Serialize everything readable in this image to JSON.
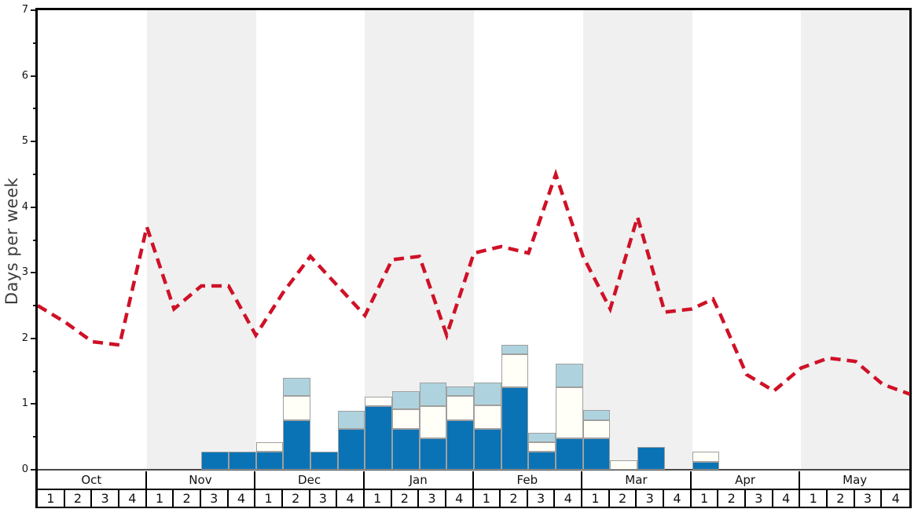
{
  "chart_data": {
    "type": "stacked-bar+line",
    "title": "",
    "ylabel": "Days per week",
    "ylim": [
      0,
      7
    ],
    "ytick_major": [
      0,
      1,
      2,
      3,
      4,
      5,
      6,
      7
    ],
    "ytick_minor_interval": 0.5,
    "grid": "off",
    "legend": "none",
    "x_months": [
      "Oct",
      "Nov",
      "Dec",
      "Jan",
      "Feb",
      "Mar",
      "Apr",
      "May"
    ],
    "x_week_labels": [
      "1",
      "2",
      "3",
      "4"
    ],
    "shaded_months": [
      "Nov",
      "Jan",
      "Mar",
      "May"
    ],
    "bars": {
      "stack_order_bottom_to_top": [
        "dark_blue",
        "white",
        "light_blue"
      ],
      "units": "days per week",
      "weekly_values": [
        {
          "month": "Oct",
          "week": 1,
          "values": [
            0,
            0,
            0
          ]
        },
        {
          "month": "Oct",
          "week": 2,
          "values": [
            0,
            0,
            0
          ]
        },
        {
          "month": "Oct",
          "week": 3,
          "values": [
            0,
            0,
            0
          ]
        },
        {
          "month": "Oct",
          "week": 4,
          "values": [
            0,
            0,
            0
          ]
        },
        {
          "month": "Nov",
          "week": 1,
          "values": [
            0,
            0,
            0
          ]
        },
        {
          "month": "Nov",
          "week": 2,
          "values": [
            0,
            0,
            0
          ]
        },
        {
          "month": "Nov",
          "week": 3,
          "values": [
            0.28,
            0,
            0
          ]
        },
        {
          "month": "Nov",
          "week": 4,
          "values": [
            0.28,
            0,
            0
          ]
        },
        {
          "month": "Dec",
          "week": 1,
          "values": [
            0.28,
            0.14,
            0
          ]
        },
        {
          "month": "Dec",
          "week": 2,
          "values": [
            0.76,
            0.36,
            0.28
          ]
        },
        {
          "month": "Dec",
          "week": 3,
          "values": [
            0.28,
            0,
            0
          ]
        },
        {
          "month": "Dec",
          "week": 4,
          "values": [
            0.62,
            0,
            0.28
          ]
        },
        {
          "month": "Jan",
          "week": 1,
          "values": [
            0.97,
            0.14,
            0
          ]
        },
        {
          "month": "Jan",
          "week": 2,
          "values": [
            0.62,
            0.3,
            0.28
          ]
        },
        {
          "month": "Jan",
          "week": 3,
          "values": [
            0.48,
            0.49,
            0.36
          ]
        },
        {
          "month": "Jan",
          "week": 4,
          "values": [
            0.76,
            0.36,
            0.15
          ]
        },
        {
          "month": "Feb",
          "week": 1,
          "values": [
            0.62,
            0.36,
            0.35
          ]
        },
        {
          "month": "Feb",
          "week": 2,
          "values": [
            1.26,
            0.5,
            0.14
          ]
        },
        {
          "month": "Feb",
          "week": 3,
          "values": [
            0.28,
            0.14,
            0.14
          ]
        },
        {
          "month": "Feb",
          "week": 4,
          "values": [
            0.48,
            0.78,
            0.35
          ]
        },
        {
          "month": "Mar",
          "week": 1,
          "values": [
            0.48,
            0.28,
            0.15
          ]
        },
        {
          "month": "Mar",
          "week": 2,
          "values": [
            0,
            0.14,
            0
          ]
        },
        {
          "month": "Mar",
          "week": 3,
          "values": [
            0.35,
            0,
            0
          ]
        },
        {
          "month": "Mar",
          "week": 4,
          "values": [
            0,
            0,
            0
          ]
        },
        {
          "month": "Apr",
          "week": 1,
          "values": [
            0.12,
            0.16,
            0
          ]
        },
        {
          "month": "Apr",
          "week": 2,
          "values": [
            0,
            0,
            0
          ]
        },
        {
          "month": "Apr",
          "week": 3,
          "values": [
            0,
            0,
            0
          ]
        },
        {
          "month": "Apr",
          "week": 4,
          "values": [
            0,
            0,
            0
          ]
        },
        {
          "month": "May",
          "week": 1,
          "values": [
            0,
            0,
            0
          ]
        },
        {
          "month": "May",
          "week": 2,
          "values": [
            0,
            0,
            0
          ]
        },
        {
          "month": "May",
          "week": 3,
          "values": [
            0,
            0,
            0
          ]
        },
        {
          "month": "May",
          "week": 4,
          "values": [
            0,
            0,
            0
          ]
        }
      ]
    },
    "red_dashed_line": {
      "style": "dashed",
      "x_unit": "weeks from start of Oct (0 = left edge, 32 = right edge)",
      "points_week_x_vs_days": [
        [
          0,
          2.5
        ],
        [
          1,
          2.25
        ],
        [
          2,
          1.95
        ],
        [
          3,
          1.9
        ],
        [
          4,
          3.7
        ],
        [
          5,
          2.45
        ],
        [
          6,
          2.8
        ],
        [
          7,
          2.8
        ],
        [
          8,
          2.05
        ],
        [
          9,
          2.7
        ],
        [
          10,
          3.25
        ],
        [
          11,
          2.8
        ],
        [
          12,
          2.35
        ],
        [
          13,
          3.2
        ],
        [
          14,
          3.25
        ],
        [
          15,
          2.05
        ],
        [
          16,
          3.3
        ],
        [
          17,
          3.4
        ],
        [
          18,
          3.3
        ],
        [
          19,
          4.5
        ],
        [
          20,
          3.25
        ],
        [
          21,
          2.45
        ],
        [
          22,
          3.85
        ],
        [
          23,
          2.4
        ],
        [
          24,
          2.45
        ],
        [
          24.77,
          2.6
        ],
        [
          25,
          2.4
        ],
        [
          26,
          1.45
        ],
        [
          27,
          1.2
        ],
        [
          28,
          1.55
        ],
        [
          29,
          1.7
        ],
        [
          30,
          1.65
        ],
        [
          31,
          1.3
        ],
        [
          32,
          1.15
        ]
      ]
    },
    "colors": {
      "dark_blue": "#0a73b5",
      "white": "#fffef7",
      "light_blue": "#aed3de",
      "bar_border": "#a0a0a0",
      "red_line": "#cf1127",
      "shaded_band": "#f0f0f0",
      "axis": "#000000",
      "y_title_text": "#3d3d3d"
    }
  }
}
